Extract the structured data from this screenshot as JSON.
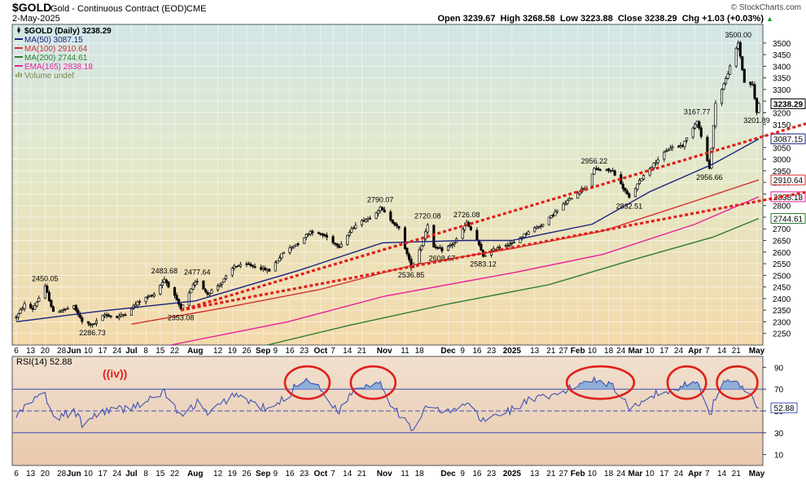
{
  "header": {
    "symbol": "$GOLD",
    "name": "Gold - Continuous Contract (EOD)",
    "exchange": "CME",
    "watermark": "© StockCharts.com",
    "date": "2-May-2025",
    "quote": "Open 3239.67  High 3268.58  Low 3223.88  Close 3238.29  Chg +1.03 (+0.03%)",
    "quote_arrow": "▲"
  },
  "colors": {
    "candle": "#000000",
    "ma50": "#1a237e",
    "ma100": "#d32f2f",
    "ma200": "#2e7d32",
    "ema165": "#e91e9c",
    "trendline": "#e0201b",
    "rsi": "#3f51b5",
    "rsi_fill": "#7da7d9",
    "circle": "#e0201b",
    "annotation": "#e0201b"
  },
  "legend": [
    {
      "label": "$GOLD (Daily) 3238.29",
      "color": "#000000",
      "swatch": "candle"
    },
    {
      "label": "MA(50) 3087.15",
      "color": "#1a237e",
      "swatch": "line"
    },
    {
      "label": "MA(100) 2910.64",
      "color": "#d32f2f",
      "swatch": "line"
    },
    {
      "label": "MA(200) 2744.61",
      "color": "#2e7d32",
      "swatch": "line"
    },
    {
      "label": "EMA(165) 2838.18",
      "color": "#e91e9c",
      "swatch": "line"
    },
    {
      "label": "Volume undef",
      "color": "#9aa06a",
      "swatch": "bars"
    }
  ],
  "rsi_label": "RSI(14) 52.88",
  "wave_label": "((iv))",
  "last_value_tags": [
    {
      "text": "3238.29",
      "price": 3238.29,
      "color": "#000000"
    },
    {
      "text": "3087.15",
      "price": 3087.15,
      "color": "#1a237e"
    },
    {
      "text": "2910.64",
      "price": 2910.64,
      "color": "#d32f2f"
    },
    {
      "text": "2838.18",
      "price": 2838.18,
      "color": "#e91e9c"
    },
    {
      "text": "2744.61",
      "price": 2744.61,
      "color": "#2e7d32"
    }
  ],
  "rsi_last_tag": {
    "text": "52.88",
    "value": 52.88
  },
  "chart_data": {
    "type": "candlestick",
    "title": "$GOLD Gold - Continuous Contract (EOD) CME",
    "ylim": [
      2200,
      3580
    ],
    "y_ticks": [
      2250,
      2300,
      2350,
      2400,
      2450,
      2500,
      2550,
      2600,
      2650,
      2700,
      2750,
      2800,
      2850,
      2900,
      2950,
      3000,
      3050,
      3100,
      3150,
      3200,
      3250,
      3300,
      3350,
      3400,
      3450,
      3500
    ],
    "date_range": [
      "2024-05-06",
      "2025-05-02"
    ],
    "x_ticks": [
      {
        "date": "2024-05-06",
        "label": "6"
      },
      {
        "date": "2024-05-13",
        "label": "13"
      },
      {
        "date": "2024-05-20",
        "label": "20"
      },
      {
        "date": "2024-05-28",
        "label": "28"
      },
      {
        "date": "2024-06-03",
        "label": "Jun"
      },
      {
        "date": "2024-06-10",
        "label": "10"
      },
      {
        "date": "2024-06-17",
        "label": "17"
      },
      {
        "date": "2024-06-24",
        "label": "24"
      },
      {
        "date": "2024-07-01",
        "label": "Jul"
      },
      {
        "date": "2024-07-08",
        "label": "8"
      },
      {
        "date": "2024-07-15",
        "label": "15"
      },
      {
        "date": "2024-07-22",
        "label": "22"
      },
      {
        "date": "2024-08-01",
        "label": "Aug"
      },
      {
        "date": "2024-08-12",
        "label": "12"
      },
      {
        "date": "2024-08-19",
        "label": "19"
      },
      {
        "date": "2024-08-26",
        "label": "26"
      },
      {
        "date": "2024-09-03",
        "label": "Sep"
      },
      {
        "date": "2024-09-09",
        "label": "9"
      },
      {
        "date": "2024-09-16",
        "label": "16"
      },
      {
        "date": "2024-09-23",
        "label": "23"
      },
      {
        "date": "2024-10-01",
        "label": "Oct"
      },
      {
        "date": "2024-10-07",
        "label": "7"
      },
      {
        "date": "2024-10-14",
        "label": "14"
      },
      {
        "date": "2024-10-21",
        "label": "21"
      },
      {
        "date": "2024-11-01",
        "label": "Nov"
      },
      {
        "date": "2024-11-11",
        "label": "11"
      },
      {
        "date": "2024-11-18",
        "label": "18"
      },
      {
        "date": "2024-12-02",
        "label": "Dec"
      },
      {
        "date": "2024-12-09",
        "label": "9"
      },
      {
        "date": "2024-12-16",
        "label": "16"
      },
      {
        "date": "2024-12-23",
        "label": "23"
      },
      {
        "date": "2025-01-02",
        "label": "2025"
      },
      {
        "date": "2025-01-13",
        "label": "13"
      },
      {
        "date": "2025-01-21",
        "label": "21"
      },
      {
        "date": "2025-01-27",
        "label": "27"
      },
      {
        "date": "2025-02-03",
        "label": "Feb"
      },
      {
        "date": "2025-02-10",
        "label": "10"
      },
      {
        "date": "2025-02-18",
        "label": "18"
      },
      {
        "date": "2025-02-24",
        "label": "24"
      },
      {
        "date": "2025-03-03",
        "label": "Mar"
      },
      {
        "date": "2025-03-10",
        "label": "10"
      },
      {
        "date": "2025-03-17",
        "label": "17"
      },
      {
        "date": "2025-03-24",
        "label": "24"
      },
      {
        "date": "2025-04-01",
        "label": "Apr"
      },
      {
        "date": "2025-04-07",
        "label": "7"
      },
      {
        "date": "2025-04-14",
        "label": "14"
      },
      {
        "date": "2025-04-21",
        "label": "21"
      },
      {
        "date": "2025-05-01",
        "label": "May"
      }
    ],
    "price_path": [
      [
        "2024-05-06",
        2320
      ],
      [
        "2024-05-10",
        2375
      ],
      [
        "2024-05-14",
        2355
      ],
      [
        "2024-05-20",
        2450.05
      ],
      [
        "2024-05-24",
        2340
      ],
      [
        "2024-05-28",
        2350
      ],
      [
        "2024-06-03",
        2365
      ],
      [
        "2024-06-07",
        2300
      ],
      [
        "2024-06-12",
        2286.73
      ],
      [
        "2024-06-18",
        2330
      ],
      [
        "2024-06-24",
        2320
      ],
      [
        "2024-06-28",
        2335
      ],
      [
        "2024-07-05",
        2390
      ],
      [
        "2024-07-12",
        2420
      ],
      [
        "2024-07-17",
        2483.68
      ],
      [
        "2024-07-22",
        2410
      ],
      [
        "2024-07-25",
        2353.08
      ],
      [
        "2024-07-31",
        2455
      ],
      [
        "2024-08-02",
        2477.64
      ],
      [
        "2024-08-07",
        2420
      ],
      [
        "2024-08-14",
        2470
      ],
      [
        "2024-08-20",
        2540
      ],
      [
        "2024-08-27",
        2545
      ],
      [
        "2024-09-06",
        2520
      ],
      [
        "2024-09-13",
        2600
      ],
      [
        "2024-09-20",
        2640
      ],
      [
        "2024-09-26",
        2690
      ],
      [
        "2024-10-03",
        2670
      ],
      [
        "2024-10-10",
        2625
      ],
      [
        "2024-10-18",
        2720
      ],
      [
        "2024-10-25",
        2750
      ],
      [
        "2024-10-30",
        2790.07
      ],
      [
        "2024-11-04",
        2740
      ],
      [
        "2024-11-08",
        2700
      ],
      [
        "2024-11-14",
        2536.85
      ],
      [
        "2024-11-19",
        2630
      ],
      [
        "2024-11-22",
        2720.08
      ],
      [
        "2024-11-25",
        2620
      ],
      [
        "2024-11-29",
        2608.67
      ],
      [
        "2024-12-05",
        2640
      ],
      [
        "2024-12-11",
        2726.08
      ],
      [
        "2024-12-16",
        2650
      ],
      [
        "2024-12-19",
        2583.12
      ],
      [
        "2024-12-27",
        2625
      ],
      [
        "2025-01-03",
        2640
      ],
      [
        "2025-01-10",
        2690
      ],
      [
        "2025-01-17",
        2720
      ],
      [
        "2025-01-24",
        2780
      ],
      [
        "2025-01-31",
        2835
      ],
      [
        "2025-02-07",
        2885
      ],
      [
        "2025-02-11",
        2956.22
      ],
      [
        "2025-02-20",
        2950
      ],
      [
        "2025-02-28",
        2832.51
      ],
      [
        "2025-03-06",
        2920
      ],
      [
        "2025-03-14",
        3000
      ],
      [
        "2025-03-20",
        3050
      ],
      [
        "2025-03-26",
        3060
      ],
      [
        "2025-04-02",
        3167.77
      ],
      [
        "2025-04-08",
        2956.66
      ],
      [
        "2025-04-11",
        3240
      ],
      [
        "2025-04-16",
        3345
      ],
      [
        "2025-04-22",
        3500.0
      ],
      [
        "2025-04-25",
        3330
      ],
      [
        "2025-04-29",
        3320
      ],
      [
        "2025-05-01",
        3201.89
      ],
      [
        "2025-05-02",
        3238.29
      ]
    ],
    "series": [
      {
        "name": "MA(50)",
        "last": 3087.15,
        "points": [
          [
            "2024-05-06",
            2300
          ],
          [
            "2024-06-15",
            2345
          ],
          [
            "2024-08-01",
            2390
          ],
          [
            "2024-09-20",
            2520
          ],
          [
            "2024-10-31",
            2640
          ],
          [
            "2024-12-10",
            2650
          ],
          [
            "2025-01-02",
            2650
          ],
          [
            "2025-02-10",
            2720
          ],
          [
            "2025-03-10",
            2860
          ],
          [
            "2025-04-10",
            2980
          ],
          [
            "2025-05-02",
            3087.15
          ]
        ]
      },
      {
        "name": "MA(100)",
        "last": 2910.64,
        "points": [
          [
            "2024-07-01",
            2290
          ],
          [
            "2024-08-15",
            2360
          ],
          [
            "2024-10-01",
            2440
          ],
          [
            "2024-11-15",
            2545
          ],
          [
            "2025-01-02",
            2615
          ],
          [
            "2025-02-15",
            2690
          ],
          [
            "2025-04-01",
            2820
          ],
          [
            "2025-05-02",
            2910.64
          ]
        ]
      },
      {
        "name": "EMA(165)",
        "last": 2838.18,
        "points": [
          [
            "2024-07-20",
            2200
          ],
          [
            "2024-09-15",
            2300
          ],
          [
            "2024-11-01",
            2410
          ],
          [
            "2025-01-02",
            2510
          ],
          [
            "2025-02-15",
            2590
          ],
          [
            "2025-04-01",
            2720
          ],
          [
            "2025-05-02",
            2838.18
          ]
        ]
      },
      {
        "name": "MA(200)",
        "last": 2744.61,
        "points": [
          [
            "2024-09-05",
            2200
          ],
          [
            "2024-10-15",
            2285
          ],
          [
            "2024-12-01",
            2375
          ],
          [
            "2025-01-20",
            2460
          ],
          [
            "2025-03-01",
            2565
          ],
          [
            "2025-04-10",
            2665
          ],
          [
            "2025-05-02",
            2744.61
          ]
        ]
      }
    ],
    "trendlines": [
      {
        "from": [
          "2024-07-25",
          2350
        ],
        "to": [
          "2025-05-02",
          3125
        ]
      },
      {
        "from": [
          "2024-07-25",
          2350
        ],
        "to": [
          "2025-05-02",
          2830
        ]
      }
    ],
    "annotations": [
      {
        "text": "2450.05",
        "date": "2024-05-20",
        "price": 2450.05,
        "pos": "above"
      },
      {
        "text": "2286.73",
        "date": "2024-06-12",
        "price": 2286.73,
        "pos": "below"
      },
      {
        "text": "2483.68",
        "date": "2024-07-17",
        "price": 2483.68,
        "pos": "above"
      },
      {
        "text": "2477.64",
        "date": "2024-08-02",
        "price": 2477.64,
        "pos": "above"
      },
      {
        "text": "2353.08",
        "date": "2024-07-25",
        "price": 2353.08,
        "pos": "below"
      },
      {
        "text": "2790.07",
        "date": "2024-10-30",
        "price": 2790.07,
        "pos": "above"
      },
      {
        "text": "2536.85",
        "date": "2024-11-14",
        "price": 2536.85,
        "pos": "below"
      },
      {
        "text": "2720.08",
        "date": "2024-11-22",
        "price": 2720.08,
        "pos": "above"
      },
      {
        "text": "2608.67",
        "date": "2024-11-29",
        "price": 2608.67,
        "pos": "below"
      },
      {
        "text": "2726.08",
        "date": "2024-12-11",
        "price": 2726.08,
        "pos": "above"
      },
      {
        "text": "2583.12",
        "date": "2024-12-19",
        "price": 2583.12,
        "pos": "below"
      },
      {
        "text": "2956.22",
        "date": "2025-02-11",
        "price": 2956.22,
        "pos": "above"
      },
      {
        "text": "2832.51",
        "date": "2025-02-28",
        "price": 2832.51,
        "pos": "below"
      },
      {
        "text": "3167.77",
        "date": "2025-04-02",
        "price": 3167.77,
        "pos": "above"
      },
      {
        "text": "2956.66",
        "date": "2025-04-08",
        "price": 2956.66,
        "pos": "below"
      },
      {
        "text": "3500.00",
        "date": "2025-04-22",
        "price": 3500.0,
        "pos": "above"
      },
      {
        "text": "3201.89",
        "date": "2025-05-01",
        "price": 3201.89,
        "pos": "below"
      }
    ],
    "rsi": {
      "name": "RSI(14)",
      "last": 52.88,
      "ylim": [
        0,
        100
      ],
      "y_ticks": [
        10,
        30,
        50,
        70,
        90
      ],
      "overbought": 70,
      "oversold": 30,
      "points": [
        [
          "2024-05-06",
          45
        ],
        [
          "2024-05-13",
          58
        ],
        [
          "2024-05-20",
          66
        ],
        [
          "2024-05-24",
          42
        ],
        [
          "2024-06-03",
          50
        ],
        [
          "2024-06-07",
          38
        ],
        [
          "2024-06-17",
          50
        ],
        [
          "2024-06-28",
          52
        ],
        [
          "2024-07-10",
          60
        ],
        [
          "2024-07-17",
          68
        ],
        [
          "2024-07-25",
          44
        ],
        [
          "2024-08-02",
          58
        ],
        [
          "2024-08-07",
          46
        ],
        [
          "2024-08-20",
          66
        ],
        [
          "2024-09-06",
          50
        ],
        [
          "2024-09-16",
          66
        ],
        [
          "2024-09-20",
          76
        ],
        [
          "2024-09-26",
          79
        ],
        [
          "2024-10-03",
          64
        ],
        [
          "2024-10-10",
          50
        ],
        [
          "2024-10-18",
          72
        ],
        [
          "2024-10-25",
          74
        ],
        [
          "2024-10-30",
          77
        ],
        [
          "2024-11-04",
          58
        ],
        [
          "2024-11-08",
          48
        ],
        [
          "2024-11-14",
          32
        ],
        [
          "2024-11-22",
          57
        ],
        [
          "2024-11-29",
          48
        ],
        [
          "2024-12-05",
          50
        ],
        [
          "2024-12-11",
          58
        ],
        [
          "2024-12-19",
          40
        ],
        [
          "2024-12-27",
          48
        ],
        [
          "2025-01-03",
          52
        ],
        [
          "2025-01-10",
          60
        ],
        [
          "2025-01-20",
          62
        ],
        [
          "2025-01-30",
          70
        ],
        [
          "2025-02-05",
          76
        ],
        [
          "2025-02-11",
          80
        ],
        [
          "2025-02-20",
          74
        ],
        [
          "2025-02-28",
          52
        ],
        [
          "2025-03-06",
          60
        ],
        [
          "2025-03-14",
          66
        ],
        [
          "2025-03-20",
          68
        ],
        [
          "2025-03-27",
          74
        ],
        [
          "2025-04-02",
          80
        ],
        [
          "2025-04-08",
          44
        ],
        [
          "2025-04-11",
          64
        ],
        [
          "2025-04-16",
          78
        ],
        [
          "2025-04-22",
          80
        ],
        [
          "2025-04-25",
          64
        ],
        [
          "2025-04-29",
          62
        ],
        [
          "2025-05-02",
          52.88
        ]
      ],
      "circles": [
        {
          "from": "2024-09-16",
          "to": "2024-10-03"
        },
        {
          "from": "2024-10-18",
          "to": "2024-11-04"
        },
        {
          "from": "2025-01-31",
          "to": "2025-02-28"
        },
        {
          "from": "2025-03-21",
          "to": "2025-04-04"
        },
        {
          "from": "2025-04-14",
          "to": "2025-04-29"
        }
      ]
    }
  }
}
